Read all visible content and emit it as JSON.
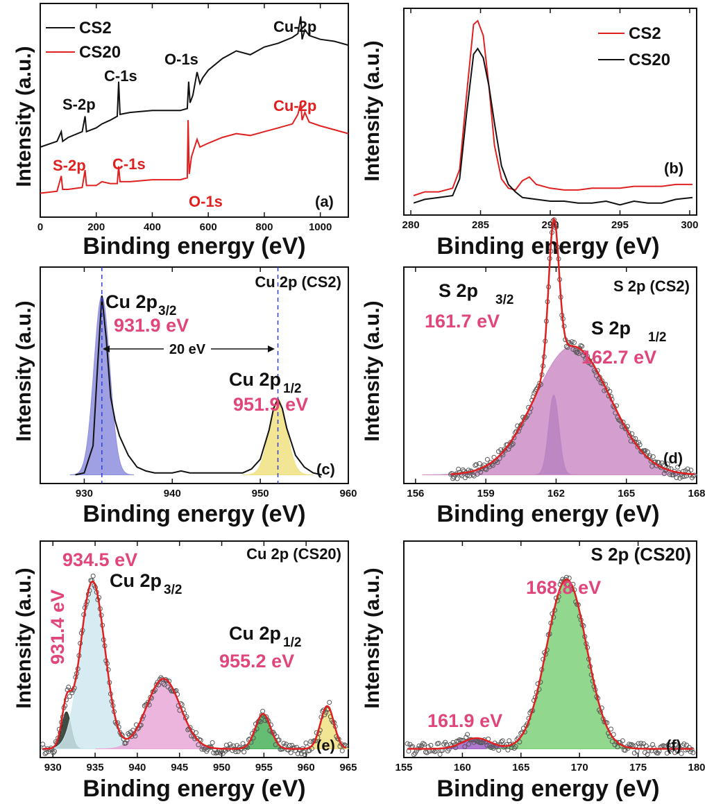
{
  "chart_data": [
    {
      "panel": "(a)",
      "type": "line",
      "xlabel": "Binding energy (eV)",
      "ylabel": "Intensity (a.u.)",
      "xlim": [
        0,
        1100
      ],
      "xticks": [
        0,
        200,
        400,
        600,
        800,
        1000
      ],
      "ylim": [
        0,
        10
      ],
      "legend": "top-left",
      "series": [
        {
          "name": "CS2",
          "color": "#111111",
          "x": [
            0,
            60,
            75,
            80,
            100,
            150,
            160,
            165,
            200,
            220,
            250,
            275,
            280,
            285,
            320,
            400,
            450,
            500,
            525,
            530,
            535,
            545,
            560,
            570,
            580,
            600,
            650,
            700,
            750,
            800,
            850,
            900,
            920,
            930,
            935,
            945,
            960,
            1000,
            1050,
            1100
          ],
          "y": [
            3.2,
            3.5,
            4.0,
            3.5,
            3.7,
            4.0,
            4.8,
            4.0,
            4.2,
            4.4,
            4.6,
            4.8,
            6.6,
            4.9,
            5.0,
            5.1,
            5.1,
            5.1,
            5.2,
            6.6,
            5.5,
            5.9,
            7.1,
            6.5,
            6.8,
            7.2,
            7.8,
            8.2,
            8.0,
            8.4,
            8.6,
            8.9,
            9.1,
            10.0,
            8.8,
            9.3,
            9.0,
            8.8,
            8.7,
            8.5
          ]
        },
        {
          "name": "CS20",
          "color": "#e02020",
          "x": [
            0,
            60,
            75,
            80,
            100,
            150,
            160,
            165,
            200,
            220,
            250,
            275,
            280,
            285,
            320,
            400,
            450,
            500,
            525,
            528,
            532,
            540,
            560,
            570,
            600,
            650,
            700,
            750,
            800,
            850,
            900,
            920,
            930,
            935,
            945,
            960,
            1000,
            1050,
            1100
          ],
          "y": [
            0.8,
            0.9,
            1.7,
            1.0,
            1.0,
            1.1,
            2.0,
            1.2,
            1.2,
            1.4,
            1.3,
            1.3,
            2.2,
            1.4,
            1.4,
            1.5,
            1.5,
            1.5,
            1.6,
            4.6,
            1.8,
            2.7,
            3.6,
            3.2,
            3.4,
            3.7,
            3.9,
            3.8,
            4.0,
            4.2,
            4.4,
            4.9,
            5.5,
            4.6,
            5.0,
            4.5,
            4.3,
            4.1,
            3.9
          ]
        }
      ],
      "annotations": [
        {
          "text": "Cu-2p",
          "x": 930,
          "y": 10.2,
          "color": "#111111"
        },
        {
          "text": "O-1s",
          "x": 540,
          "y": 8.4,
          "color": "#111111"
        },
        {
          "text": "C-1s",
          "x": 270,
          "y": 7.2,
          "color": "#111111"
        },
        {
          "text": "S-2p",
          "x": 140,
          "y": 5.4,
          "color": "#111111"
        },
        {
          "text": "Cu-2p",
          "x": 930,
          "y": 5.8,
          "color": "#e02020"
        },
        {
          "text": "S-2p",
          "x": 90,
          "y": 2.5,
          "color": "#e02020"
        },
        {
          "text": "C-1s",
          "x": 300,
          "y": 2.8,
          "color": "#e02020"
        },
        {
          "text": "O-1s",
          "x": 590,
          "y": 0.1,
          "color": "#e02020"
        }
      ],
      "tag": "(a)"
    },
    {
      "panel": "(b)",
      "type": "line",
      "xlabel": "Binding energy (eV)",
      "ylabel": "Intensity (a.u.)",
      "xlim": [
        279.5,
        300.5
      ],
      "xticks": [
        280,
        285,
        290,
        295,
        300
      ],
      "ylim": [
        0,
        10
      ],
      "legend": "top-right",
      "series": [
        {
          "name": "CS2",
          "color": "#e02020",
          "x": [
            280.2,
            281,
            282,
            283,
            283.5,
            284,
            284.5,
            284.8,
            285.2,
            285.6,
            286,
            286.5,
            287,
            287.5,
            288,
            288.5,
            289,
            290,
            291,
            292,
            293,
            294,
            295,
            296,
            297,
            298,
            299,
            300.2
          ],
          "y": [
            0.6,
            0.8,
            0.8,
            1.0,
            2.0,
            6.0,
            9.8,
            10.0,
            9.2,
            6.5,
            3.3,
            1.5,
            1.0,
            0.9,
            1.4,
            1.6,
            1.2,
            1.0,
            0.9,
            0.9,
            1.0,
            1.0,
            1.0,
            1.1,
            1.1,
            1.1,
            1.2,
            1.2
          ]
        },
        {
          "name": "CS20",
          "color": "#111111",
          "x": [
            280.2,
            281,
            282,
            283,
            283.5,
            284,
            284.5,
            284.8,
            285.2,
            285.6,
            286,
            286.5,
            287,
            287.5,
            288,
            289,
            290,
            291,
            292,
            293,
            294,
            295,
            296,
            297,
            298,
            299,
            300.2
          ],
          "y": [
            0.2,
            0.4,
            0.5,
            0.6,
            1.5,
            5.0,
            8.2,
            8.5,
            8.0,
            6.5,
            4.5,
            2.2,
            1.2,
            0.8,
            0.5,
            0.4,
            0.3,
            0.3,
            0.2,
            0.2,
            0.3,
            0.1,
            0.3,
            0.2,
            0.2,
            0.4,
            0.5
          ]
        }
      ],
      "tag": "(b)"
    },
    {
      "panel": "(c)",
      "type": "line",
      "title": "Cu 2p (CS2)",
      "xlabel": "Binding energy (eV)",
      "ylabel": "Intensity (a.u.)",
      "xlim": [
        925,
        960
      ],
      "xticks": [
        930,
        940,
        950,
        960
      ],
      "ylim": [
        0,
        10
      ],
      "fills": [
        {
          "center": 932.0,
          "height": 9.2,
          "width": 0.9,
          "color": "#8e8ede"
        },
        {
          "center": 952.0,
          "height": 3.9,
          "width": 1.0,
          "color": "#f0e080"
        }
      ],
      "series": [
        {
          "name": "CS2",
          "color": "#111111",
          "x": [
            929,
            930,
            931,
            931.5,
            932,
            932.5,
            933,
            933.5,
            934,
            934.5,
            935,
            936,
            937,
            938,
            940,
            941,
            942,
            944,
            946,
            948,
            949,
            950,
            951,
            951.5,
            952,
            952.5,
            953,
            954,
            955,
            956,
            957
          ],
          "y": [
            0.0,
            0.1,
            1.5,
            5.5,
            9.2,
            7.0,
            4.0,
            2.8,
            2.0,
            1.5,
            1.0,
            0.4,
            0.2,
            0.1,
            0.1,
            0.2,
            0.1,
            0.1,
            0.1,
            0.1,
            0.3,
            0.8,
            2.3,
            3.4,
            3.9,
            3.4,
            2.4,
            1.0,
            0.4,
            0.1,
            0.0
          ]
        }
      ],
      "dashed_lines_x": [
        932.0,
        952.0
      ],
      "annotations": [
        {
          "text": "931.9 eV",
          "color": "#e0457b"
        },
        {
          "text": "20 eV",
          "color": "#111111"
        },
        {
          "text": "951.9 eV",
          "color": "#e0457b"
        }
      ],
      "peak_labels": [
        {
          "main": "Cu 2p",
          "sub": "3/2"
        },
        {
          "main": "Cu 2p",
          "sub": "1/2"
        }
      ],
      "tag": "(c)"
    },
    {
      "panel": "(d)",
      "type": "scatter",
      "title": "S 2p (CS2)",
      "xlabel": "Binding energy (eV)",
      "ylabel": "Intensity (a.u.)",
      "xlim": [
        155.5,
        168
      ],
      "xticks": [
        156,
        159,
        162,
        165,
        168
      ],
      "ylim": [
        0,
        10
      ],
      "fills": [
        {
          "center": 161.9,
          "height": 4.1,
          "width": 0.22,
          "color": "#4a3fb0"
        },
        {
          "center": 162.7,
          "height": 6.6,
          "width": 1.6,
          "color": "#cc8ec6"
        }
      ],
      "fit_color": "#e02020",
      "fit_extra": {
        "center": 161.9,
        "height": 3.2,
        "width": 0.22
      },
      "annotations": [
        {
          "text": "161.7 eV",
          "color": "#e0457b"
        },
        {
          "text": "162.7 eV",
          "color": "#e0457b"
        }
      ],
      "peak_labels": [
        {
          "main": "S 2p",
          "sub": "3/2"
        },
        {
          "main": "S 2p",
          "sub": "1/2"
        }
      ],
      "tag": "(d)"
    },
    {
      "panel": "(e)",
      "type": "scatter",
      "title": "Cu 2p (CS20)",
      "xlabel": "Binding energy (eV)",
      "ylabel": "Intensity (a.u.)",
      "xlim": [
        928.5,
        965
      ],
      "xticks": [
        930,
        935,
        940,
        945,
        950,
        955,
        960,
        965
      ],
      "ylim": [
        0,
        10
      ],
      "fills": [
        {
          "center": 931.6,
          "height": 1.9,
          "width": 0.55,
          "color": "#1e2b20"
        },
        {
          "center": 934.7,
          "height": 8.6,
          "width": 1.45,
          "color": "#cfe9f0"
        },
        {
          "center": 943.1,
          "height": 3.6,
          "width": 2.0,
          "color": "#e8a8d8"
        },
        {
          "center": 954.9,
          "height": 1.8,
          "width": 0.9,
          "color": "#4ab05a"
        },
        {
          "center": 962.5,
          "height": 2.2,
          "width": 0.8,
          "color": "#f0e080"
        }
      ],
      "fit_color": "#e02020",
      "annotations": [
        {
          "text": "934.5 eV",
          "color": "#e0457b"
        },
        {
          "text": "931.4 eV",
          "color": "#e0457b"
        },
        {
          "text": "955.2 eV",
          "color": "#e0457b"
        }
      ],
      "peak_labels": [
        {
          "main": "Cu 2p",
          "sub": "3/2"
        },
        {
          "main": "Cu 2p",
          "sub": "1/2"
        }
      ],
      "tag": "(e)"
    },
    {
      "panel": "(f)",
      "type": "scatter",
      "title": "S 2p (CS20)",
      "xlabel": "Binding energy (eV)",
      "ylabel": "Intensity (a.u.)",
      "xlim": [
        155,
        180
      ],
      "xticks": [
        155,
        160,
        165,
        170,
        175,
        180
      ],
      "ylim": [
        0,
        10
      ],
      "fills": [
        {
          "center": 161.2,
          "height": 0.55,
          "width": 1.2,
          "color": "#a060c8"
        },
        {
          "center": 168.9,
          "height": 8.7,
          "width": 1.7,
          "color": "#7ed07a"
        }
      ],
      "fit_color": "#e02020",
      "annotations": [
        {
          "text": "168.8 eV",
          "color": "#e0457b"
        },
        {
          "text": "161.9 eV",
          "color": "#e0457b"
        }
      ],
      "tag": "(f)"
    }
  ]
}
